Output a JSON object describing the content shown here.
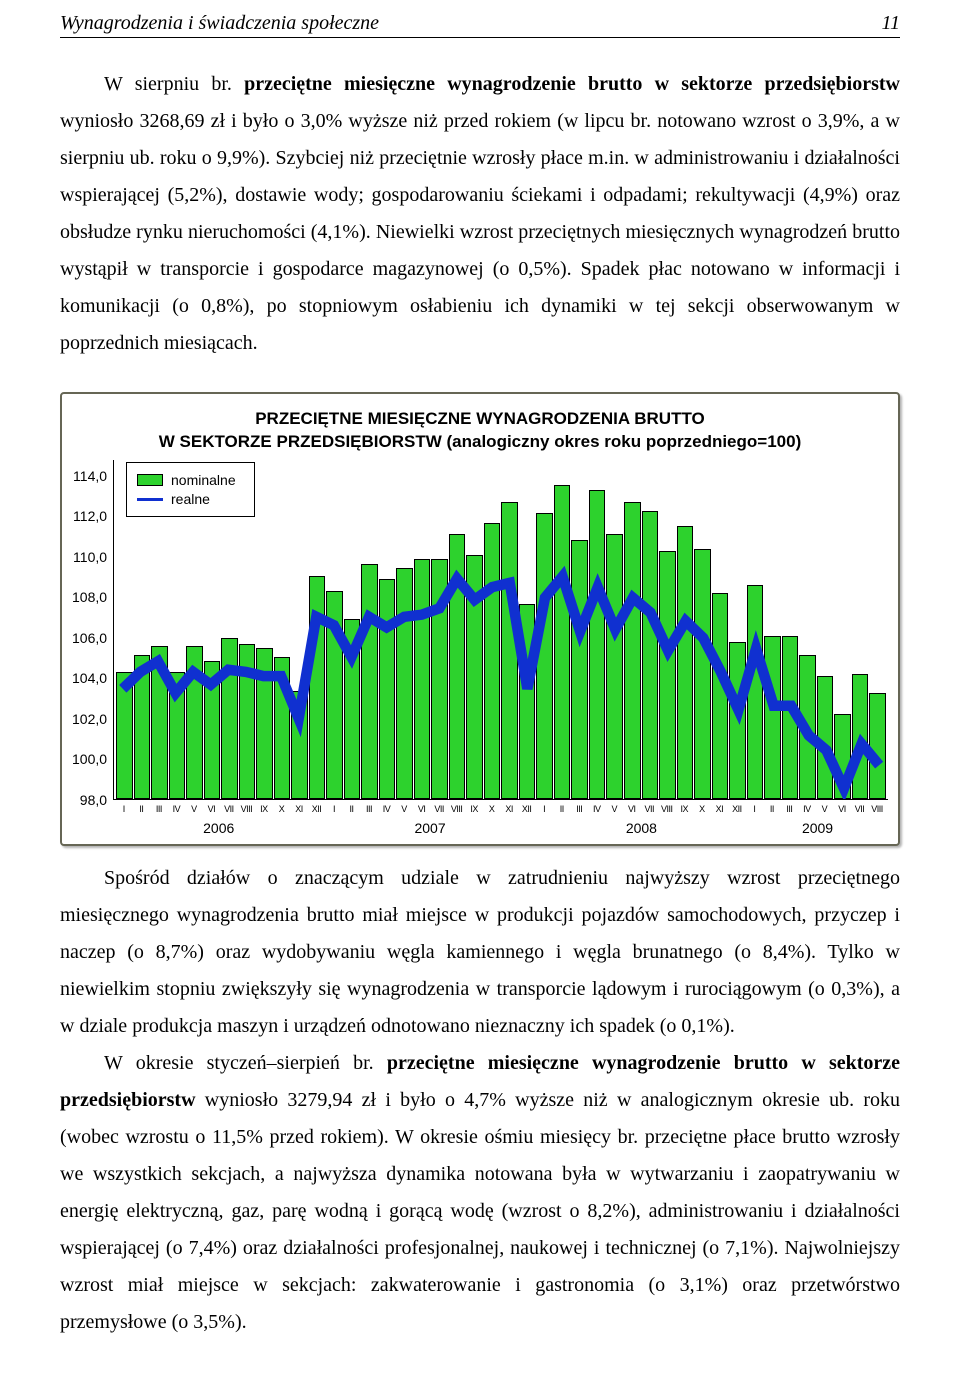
{
  "header": {
    "title": "Wynagrodzenia i świadczenia społeczne",
    "page": "11"
  },
  "para1_a": "W sierpniu br. ",
  "para1_bold": "przeciętne miesięczne wynagrodzenie brutto w sektorze przedsiębiorstw",
  "para1_b": " wyniosło 3268,69 zł i było o 3,0% wyższe niż przed rokiem (w lipcu br. notowano wzrost o 3,9%, a w sierpniu ub. roku  o 9,9%). Szybciej niż przeciętnie wzrosły płace m.in. w administrowaniu i działalności wspierającej (5,2%), dostawie wody; gospodarowaniu ściekami i odpadami; rekultywacji (4,9%) oraz obsłudze rynku nieruchomości (4,1%). Niewielki wzrost przeciętnych miesięcznych wynagrodzeń brutto wystąpił w transporcie i gospodarce magazynowej (o 0,5%). Spadek płac notowano w informacji i komunikacji (o 0,8%), po stopniowym osłabieniu ich dynamiki w tej sekcji obserwowanym w poprzednich miesiącach.",
  "para2": "Spośród działów o znaczącym udziale w zatrudnieniu najwyższy wzrost przeciętnego miesięcznego wynagrodzenia brutto miał miejsce w produkcji pojazdów samochodowych, przyczep i naczep (o 8,7%) oraz wydobywaniu węgla kamiennego i węgla brunatnego (o 8,4%). Tylko w niewielkim stopniu zwiększyły się wynagrodzenia w transporcie lądowym i rurociągowym (o 0,3%), a w dziale produkcja maszyn i urządzeń odnotowano nieznaczny ich spadek (o 0,1%).",
  "para3_a": "W okresie styczeń–sierpień br. ",
  "para3_bold": "przeciętne miesięczne wynagrodzenie brutto w sektorze przedsiębiorstw",
  "para3_b": " wyniosło 3279,94 zł i było o 4,7% wyższe niż w analogicznym okresie ub. roku (wobec wzrostu o 11,5% przed rokiem). W okresie ośmiu miesięcy br. przeciętne płace brutto wzrosły we wszystkich sekcjach, a najwyższa dynamika notowana była w wytwarzaniu i zaopatrywaniu w energię elektryczną, gaz, parę wodną i gorącą wodę (wzrost o 8,2%), administrowaniu i działalności wspierającej (o 7,4%) oraz działalności profesjonalnej, naukowej i technicznej (o 7,1%). Najwolniejszy wzrost miał miejsce w sekcjach: zakwaterowanie i gastronomia (o 3,1%) oraz przetwórstwo przemysłowe (o 3,5%).",
  "chart": {
    "title1": "PRZECIĘTNE MIESIĘCZNE WYNAGRODZENIA BRUTTO",
    "title2": "W SEKTORZE PRZEDSIĘBIORSTW (analogiczny okres roku poprzedniego=100)",
    "legend": {
      "nominal": "nominalne",
      "real": "realne"
    },
    "y_ticks": [
      "114,0",
      "112,0",
      "110,0",
      "108,0",
      "106,0",
      "104,0",
      "102,0",
      "100,0",
      "98,0"
    ],
    "y_min": 98.0,
    "y_max": 114.0,
    "bar_color": "#2dd22d",
    "bar_border": "#000000",
    "line_color": "#1030d0",
    "line_width": 3.5,
    "background": "#ffffff",
    "title_fontsize": 17,
    "axis_fontsize": 14,
    "tick_fontsize": 9,
    "x_months": [
      "I",
      "II",
      "III",
      "IV",
      "V",
      "VI",
      "VII",
      "VIII",
      "IX",
      "X",
      "XI",
      "XII",
      "I",
      "II",
      "III",
      "IV",
      "V",
      "VI",
      "VII",
      "VIII",
      "IX",
      "X",
      "XI",
      "XII",
      "I",
      "II",
      "III",
      "IV",
      "V",
      "VI",
      "VII",
      "VIII",
      "IX",
      "X",
      "XI",
      "XII",
      "I",
      "II",
      "III",
      "IV",
      "V",
      "VI",
      "VII",
      "VIII"
    ],
    "x_years": [
      {
        "label": "2006",
        "span": 12
      },
      {
        "label": "2007",
        "span": 12
      },
      {
        "label": "2008",
        "span": 12
      },
      {
        "label": "2009",
        "span": 8
      }
    ],
    "nominal": [
      104.0,
      104.8,
      105.2,
      104.0,
      105.2,
      104.5,
      105.6,
      105.3,
      105.1,
      104.7,
      103.1,
      108.5,
      107.8,
      106.5,
      109.1,
      108.4,
      108.9,
      109.3,
      109.3,
      110.5,
      109.5,
      111.0,
      112.0,
      107.2,
      111.5,
      112.8,
      110.2,
      112.6,
      110.5,
      112.0,
      111.6,
      109.7,
      110.9,
      109.8,
      107.7,
      105.4,
      108.1,
      105.7,
      105.7,
      104.8,
      103.8,
      102.0,
      103.9,
      103.0
    ],
    "real": [
      103.2,
      104.0,
      104.5,
      103.0,
      104.0,
      103.4,
      104.1,
      104.0,
      103.8,
      103.8,
      101.8,
      106.6,
      106.2,
      104.7,
      106.6,
      106.1,
      106.6,
      106.7,
      107.0,
      108.4,
      107.4,
      108.0,
      108.2,
      103.2,
      107.5,
      108.5,
      105.9,
      108.0,
      106.0,
      107.5,
      106.8,
      105.0,
      106.4,
      105.6,
      104.0,
      102.2,
      105.1,
      102.4,
      102.4,
      101.0,
      100.3,
      98.5,
      100.6,
      99.6
    ]
  }
}
